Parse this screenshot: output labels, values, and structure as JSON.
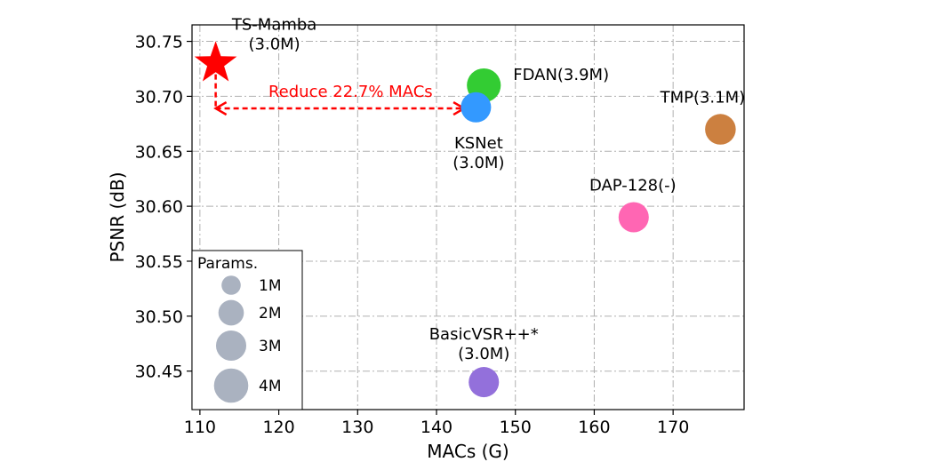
{
  "chart_data": {
    "type": "scatter",
    "xlabel": "MACs (G)",
    "ylabel": "PSNR (dB)",
    "xlim": [
      109,
      179
    ],
    "ylim": [
      30.415,
      30.765
    ],
    "xticks": [
      110,
      120,
      130,
      140,
      150,
      160,
      170
    ],
    "xtick_labels": [
      "110",
      "120",
      "130",
      "140",
      "150",
      "160",
      "170"
    ],
    "yticks": [
      30.45,
      30.5,
      30.55,
      30.6,
      30.65,
      30.7,
      30.75
    ],
    "ytick_labels": [
      "30.45",
      "30.50",
      "30.55",
      "30.60",
      "30.65",
      "30.70",
      "30.75"
    ],
    "grid": true,
    "points": [
      {
        "name": "TS-Mamba",
        "label_lines": [
          "TS-Mamba",
          "(3.0M)"
        ],
        "x": 112,
        "y": 30.73,
        "params_m": 3.0,
        "marker": "star",
        "color": "#ff0000"
      },
      {
        "name": "FDAN",
        "label_lines": [
          "FDAN(3.9M)"
        ],
        "x": 146,
        "y": 30.71,
        "params_m": 3.9,
        "marker": "circle",
        "color": "#33cc33"
      },
      {
        "name": "KSNet",
        "label_lines": [
          "KSNet",
          "(3.0M)"
        ],
        "x": 145,
        "y": 30.69,
        "params_m": 3.0,
        "marker": "circle",
        "color": "#3399ff"
      },
      {
        "name": "TMP",
        "label_lines": [
          "TMP(3.1M)"
        ],
        "x": 176,
        "y": 30.67,
        "params_m": 3.1,
        "marker": "circle",
        "color": "#cc8040"
      },
      {
        "name": "DAP-128",
        "label_lines": [
          "DAP-128(-)"
        ],
        "x": 165,
        "y": 30.59,
        "params_m": 3.0,
        "marker": "circle",
        "color": "#ff66b3"
      },
      {
        "name": "BasicVSR++*",
        "label_lines": [
          "BasicVSR++*",
          "(3.0M)"
        ],
        "x": 146,
        "y": 30.44,
        "params_m": 3.0,
        "marker": "circle",
        "color": "#9370db"
      }
    ],
    "annotation": {
      "text": "Reduce 22.7% MACs",
      "from_x": 112,
      "to_x": 143.5,
      "y": 30.689,
      "vertical_from_y": 30.72,
      "color": "#ff0000"
    },
    "legend": {
      "title": "Params.",
      "placement": "lower-left",
      "entries": [
        {
          "label": "1M",
          "params_m": 1
        },
        {
          "label": "2M",
          "params_m": 2
        },
        {
          "label": "3M",
          "params_m": 3
        },
        {
          "label": "4M",
          "params_m": 4
        }
      ],
      "color": "#aab2c0"
    }
  }
}
